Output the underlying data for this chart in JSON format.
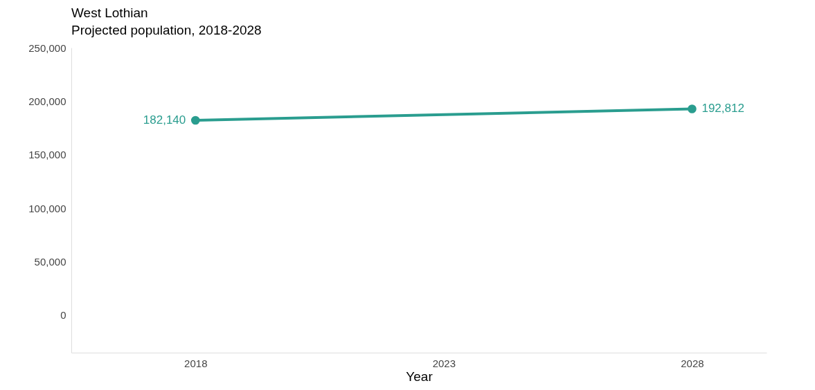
{
  "chart_data": {
    "type": "line",
    "title": "West Lothian",
    "subtitle": "Projected population, 2018-2028",
    "xlabel": "Year",
    "x": [
      2018,
      2028
    ],
    "series": [
      {
        "color": "#2a9d8f",
        "values": [
          182140,
          192812
        ],
        "value_labels": [
          "182,140",
          "192,812"
        ]
      }
    ],
    "xlim": [
      2015.5,
      2029.5
    ],
    "xticks": [
      2018,
      2023,
      2028
    ],
    "ylim": [
      -35000,
      250000
    ],
    "yticks": [
      {
        "value": 0,
        "label": "0"
      },
      {
        "value": 50000,
        "label": "50,000"
      },
      {
        "value": 100000,
        "label": "100,000"
      },
      {
        "value": 150000,
        "label": "150,000"
      },
      {
        "value": 200000,
        "label": "200,000"
      },
      {
        "value": 250000,
        "label": "250,000"
      }
    ],
    "marker": "circle",
    "grid": false,
    "legend": false
  }
}
